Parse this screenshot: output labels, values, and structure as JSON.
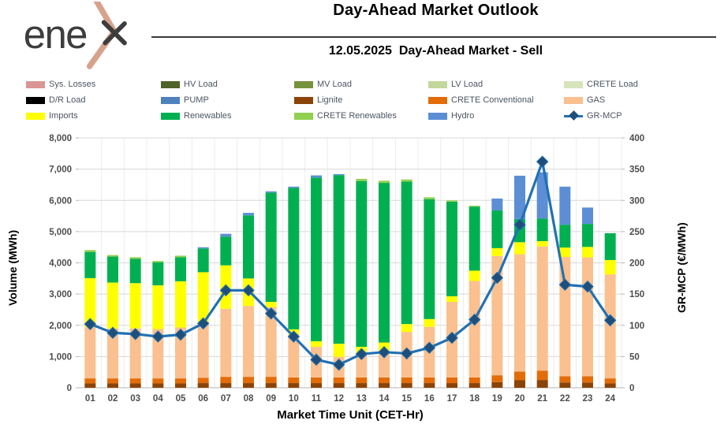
{
  "header": {
    "logo_text": "enex",
    "title": "Day-Ahead Market Outlook",
    "subtitle": "12.05.2025  Day-Ahead Market - Sell"
  },
  "colors": {
    "grid": "#d8d8d8",
    "grid_vertical": "#ececec",
    "baseline": "#b5b5b5",
    "tick_text": "#4d4d4d",
    "logo_dark": "#3d3d3d",
    "logo_accent": "#d7a28c"
  },
  "legend": {
    "items": [
      {
        "label": "Sys. Losses",
        "color": "#d99694",
        "kind": "box"
      },
      {
        "label": "HV Load",
        "color": "#4f6228",
        "kind": "box"
      },
      {
        "label": "MV Load",
        "color": "#76923c",
        "kind": "box"
      },
      {
        "label": "LV Load",
        "color": "#c3d69b",
        "kind": "box"
      },
      {
        "label": "CRETE Load",
        "color": "#d7e4bc",
        "kind": "box"
      },
      {
        "label": "D/R Load",
        "color": "#000000",
        "kind": "box"
      },
      {
        "label": "PUMP",
        "color": "#4f81bd",
        "kind": "box"
      },
      {
        "label": "Lignite",
        "color": "#8a4408",
        "kind": "box"
      },
      {
        "label": "CRETE Conventional",
        "color": "#e36c09",
        "kind": "box"
      },
      {
        "label": "GAS",
        "color": "#fac08f",
        "kind": "box"
      },
      {
        "label": "Imports",
        "color": "#ffff00",
        "kind": "box"
      },
      {
        "label": "Renewables",
        "color": "#00b050",
        "kind": "box"
      },
      {
        "label": "CRETE Renewables",
        "color": "#92d050",
        "kind": "box"
      },
      {
        "label": "Hydro",
        "color": "#5b8ed5",
        "kind": "box"
      },
      {
        "label": "GR-MCP",
        "color": "#2271b3",
        "marker_color": "#1f4e79",
        "kind": "line"
      }
    ]
  },
  "chart_data": {
    "type": "stacked-bar+line",
    "title": "Day-Ahead Market Outlook",
    "subtitle": "12.05.2025  Day-Ahead Market - Sell",
    "xlabel": "Market Time Unit (CET-Hr)",
    "categories": [
      "01",
      "02",
      "03",
      "04",
      "05",
      "06",
      "07",
      "08",
      "09",
      "10",
      "11",
      "12",
      "13",
      "14",
      "15",
      "16",
      "17",
      "18",
      "19",
      "20",
      "21",
      "22",
      "23",
      "24"
    ],
    "left_axis": {
      "label": "Volume (MWh)",
      "min": 0,
      "max": 8000,
      "step": 1000,
      "tick_labels": [
        "0",
        "1,000",
        "2,000",
        "3,000",
        "4,000",
        "5,000",
        "6,000",
        "7,000",
        "8,000"
      ]
    },
    "right_axis": {
      "label": "GR-MCP (€/MWh)",
      "min": 0,
      "max": 400,
      "step": 50,
      "tick_labels": [
        "0",
        "50",
        "100",
        "150",
        "200",
        "250",
        "300",
        "350",
        "400"
      ]
    },
    "series": [
      {
        "name": "Lignite",
        "color": "#8a4408",
        "values": [
          140,
          140,
          140,
          140,
          140,
          150,
          150,
          150,
          150,
          150,
          150,
          150,
          150,
          150,
          150,
          150,
          150,
          150,
          180,
          240,
          250,
          170,
          170,
          140
        ]
      },
      {
        "name": "CRETE Conventional",
        "color": "#e36c09",
        "values": [
          160,
          160,
          160,
          160,
          160,
          170,
          200,
          200,
          200,
          180,
          180,
          180,
          180,
          180,
          180,
          180,
          180,
          180,
          220,
          280,
          300,
          200,
          200,
          160
        ]
      },
      {
        "name": "GAS",
        "color": "#fac08f",
        "values": [
          1640,
          1600,
          1600,
          1580,
          1630,
          1770,
          2180,
          2270,
          2230,
          1370,
          980,
          660,
          740,
          820,
          1460,
          1620,
          2420,
          3090,
          3820,
          3755,
          3977,
          3820,
          3805,
          3330
        ]
      },
      {
        "name": "Imports",
        "color": "#ffff00",
        "values": [
          1570,
          1470,
          1450,
          1400,
          1480,
          1610,
          1390,
          880,
          170,
          170,
          180,
          420,
          240,
          300,
          250,
          250,
          180,
          330,
          250,
          385,
          167,
          300,
          335,
          460
        ]
      },
      {
        "name": "Renewables",
        "color": "#00b050",
        "values": [
          840,
          830,
          780,
          740,
          770,
          760,
          920,
          2020,
          3500,
          4530,
          5240,
          5400,
          5310,
          5110,
          4560,
          3840,
          3030,
          2050,
          1210,
          747,
          721,
          730,
          737,
          860
        ]
      },
      {
        "name": "CRETE Renewables",
        "color": "#92d050",
        "values": [
          60,
          50,
          50,
          40,
          50,
          0,
          0,
          0,
          0,
          0,
          0,
          0,
          70,
          70,
          70,
          60,
          40,
          30,
          0,
          0,
          0,
          0,
          0,
          0
        ]
      },
      {
        "name": "Hydro",
        "color": "#5b8ed5",
        "values": [
          0,
          0,
          0,
          0,
          0,
          40,
          90,
          80,
          40,
          40,
          70,
          30,
          0,
          0,
          0,
          0,
          0,
          0,
          380,
          1383,
          1485,
          1220,
          523,
          0
        ]
      }
    ],
    "line_series": {
      "name": "GR-MCP",
      "axis": "right",
      "color": "#2271b3",
      "marker_color": "#1f4e79",
      "values": [
        102,
        88,
        86,
        82,
        85,
        103,
        156,
        156,
        119,
        82,
        45,
        37,
        54,
        57,
        55,
        64,
        80,
        109,
        176,
        261,
        362,
        165,
        162,
        108
      ]
    }
  }
}
